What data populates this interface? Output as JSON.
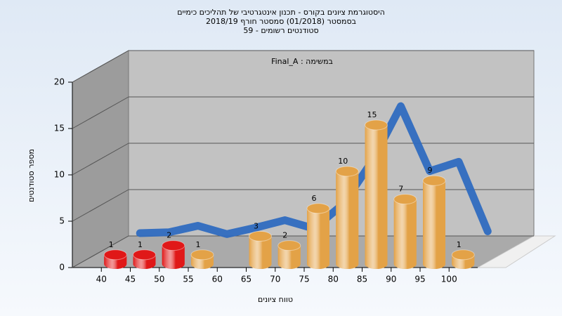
{
  "chart_data": {
    "type": "bar3d",
    "title": [
      "היסטוגרמת ציונים בקורס - תכנון אינטגרטיבי של תהליכים כימיים",
      "בסמסטר  (01/2018)  סמסטר חורף 2018/19",
      "סטודנטים רשומים - 59"
    ],
    "annotation": "Final_A : במשימה",
    "x_label": "טווח ציונים",
    "y_label": "מספר סטודנטים",
    "categories": [
      "40",
      "45",
      "50",
      "55",
      "60",
      "65",
      "70",
      "75",
      "80",
      "85",
      "90",
      "95",
      "100"
    ],
    "values": [
      1,
      1,
      2,
      1,
      null,
      3,
      2,
      6,
      10,
      15,
      7,
      9,
      1
    ],
    "colors": [
      "#e01818",
      "#e01818",
      "#e01818",
      "#e3a247",
      "#e3a247",
      "#e3a247",
      "#e3a247",
      "#e3a247",
      "#e3a247",
      "#e3a247",
      "#e3a247",
      "#e3a247",
      "#e3a247"
    ],
    "trend": {
      "color": "#2f6cc0",
      "values": [
        0.3,
        0.4,
        1.1,
        0.2,
        0.9,
        1.7,
        0.8,
        3.4,
        8,
        14,
        7,
        8,
        0.5
      ]
    },
    "ylim": [
      0,
      20
    ],
    "yticks": [
      0,
      5,
      10,
      15,
      20
    ],
    "grid": true
  }
}
